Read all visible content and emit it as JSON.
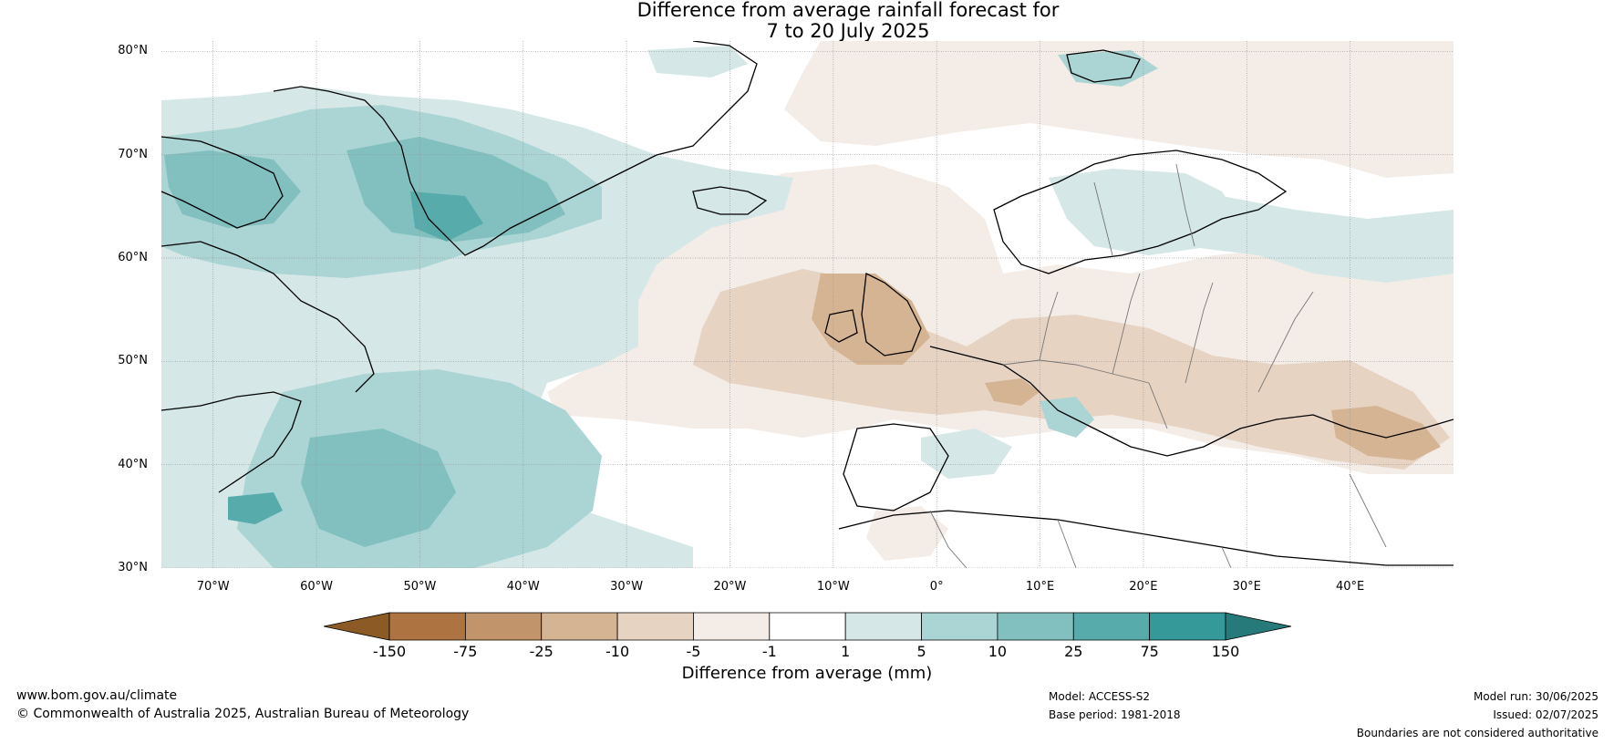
{
  "title": {
    "line1": "Difference from average rainfall forecast for",
    "line2": "7 to 20 July 2025"
  },
  "map": {
    "extent": {
      "lon": [
        -75,
        50
      ],
      "lat": [
        30,
        81
      ]
    },
    "lat_ticks": [
      {
        "value": 80,
        "label": "80°N"
      },
      {
        "value": 70,
        "label": "70°N"
      },
      {
        "value": 60,
        "label": "60°N"
      },
      {
        "value": 50,
        "label": "50°N"
      },
      {
        "value": 40,
        "label": "40°N"
      },
      {
        "value": 30,
        "label": "30°N"
      }
    ],
    "lon_ticks": [
      {
        "value": -70,
        "label": "70°W"
      },
      {
        "value": -60,
        "label": "60°W"
      },
      {
        "value": -50,
        "label": "50°W"
      },
      {
        "value": -40,
        "label": "40°W"
      },
      {
        "value": -30,
        "label": "30°W"
      },
      {
        "value": -20,
        "label": "20°W"
      },
      {
        "value": -10,
        "label": "10°W"
      },
      {
        "value": 0,
        "label": "0°"
      },
      {
        "value": 10,
        "label": "10°E"
      },
      {
        "value": 20,
        "label": "20°E"
      },
      {
        "value": 30,
        "label": "30°E"
      },
      {
        "value": 40,
        "label": "40°E"
      }
    ],
    "gridlines": true
  },
  "colorbar": {
    "title": "Difference from average (mm)",
    "ticks": [
      "-150",
      "-75",
      "-25",
      "-10",
      "-5",
      "-1",
      "1",
      "5",
      "10",
      "25",
      "75",
      "150"
    ],
    "colors": [
      "#8c5a24",
      "#ad7442",
      "#c1946b",
      "#d5b494",
      "#e6d3c2",
      "#f4ede7",
      "#ffffff",
      "#d5e7e7",
      "#abd4d4",
      "#82bfbf",
      "#58abab",
      "#35999a",
      "#267a7a"
    ]
  },
  "footer": {
    "website": "www.bom.gov.au/climate",
    "copyright": "© Commonwealth of Australia 2025, Australian Bureau of Meteorology",
    "model": "Model: ACCESS-S2",
    "base_period": "Base period: 1981-2018",
    "model_run": "Model run: 30/06/2025",
    "issued": "Issued: 02/07/2025",
    "disclaimer": "Boundaries are not considered authoritative"
  }
}
